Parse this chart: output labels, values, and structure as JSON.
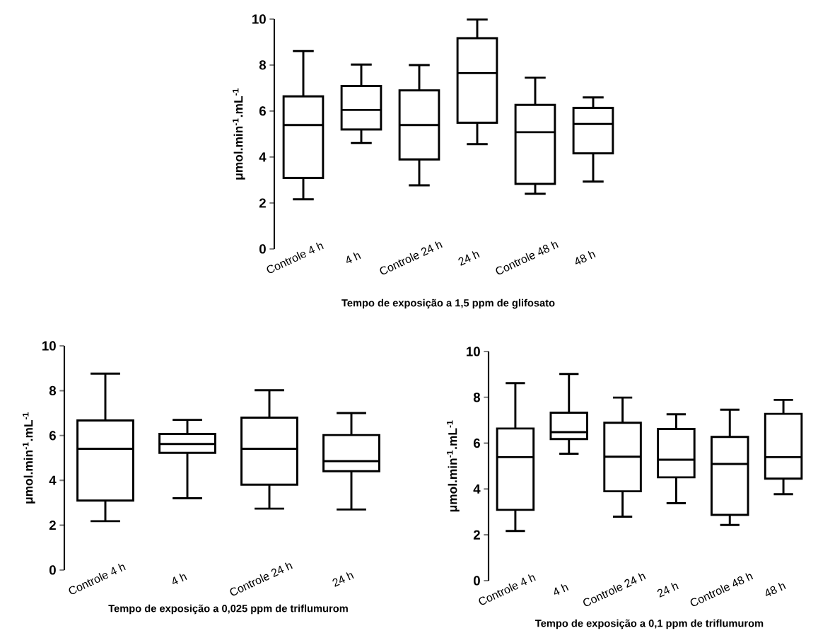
{
  "chart_data": [
    {
      "type": "box",
      "xlabel": "Tempo de exposição a 1,5 ppm de glifosato",
      "ylabel": "μmol.min$^{-1}$.mL$^{-1}$",
      "categories": [
        "Controle 4 h",
        "4 h",
        "Controle 24 h",
        "24 h",
        "Controle 48 h",
        "48 h"
      ],
      "ylim": [
        0,
        10
      ],
      "yticks": [
        0,
        2,
        4,
        6,
        8,
        10
      ],
      "boxes": [
        {
          "low": 2.16,
          "q1": 3.09,
          "median": 5.39,
          "q3": 6.64,
          "high": 8.61
        },
        {
          "low": 4.61,
          "q1": 5.2,
          "median": 6.05,
          "q3": 7.09,
          "high": 8.02
        },
        {
          "low": 2.77,
          "q1": 3.89,
          "median": 5.39,
          "q3": 6.9,
          "high": 8.0
        },
        {
          "low": 4.56,
          "q1": 5.49,
          "median": 7.65,
          "q3": 9.17,
          "high": 9.98
        },
        {
          "low": 2.4,
          "q1": 2.83,
          "median": 5.08,
          "q3": 6.27,
          "high": 7.45
        },
        {
          "low": 2.93,
          "q1": 4.16,
          "median": 5.44,
          "q3": 6.14,
          "high": 6.59
        }
      ]
    },
    {
      "type": "box",
      "xlabel": "Tempo de exposição a 0,025 ppm de triflumurom",
      "ylabel": "μmol.min$^{-1}$.mL$^{-1}$",
      "categories": [
        "Controle 4 h",
        "4 h",
        "Controle 24 h",
        "24 h"
      ],
      "ylim": [
        0,
        10
      ],
      "yticks": [
        0,
        2,
        4,
        6,
        8,
        10
      ],
      "boxes": [
        {
          "low": 2.18,
          "q1": 3.1,
          "median": 5.41,
          "q3": 6.67,
          "high": 8.76
        },
        {
          "low": 3.2,
          "q1": 5.23,
          "median": 5.62,
          "q3": 6.07,
          "high": 6.7
        },
        {
          "low": 2.74,
          "q1": 3.81,
          "median": 5.41,
          "q3": 6.8,
          "high": 8.02
        },
        {
          "low": 2.7,
          "q1": 4.41,
          "median": 4.86,
          "q3": 6.02,
          "high": 7.0
        }
      ]
    },
    {
      "type": "box",
      "xlabel": "Tempo de exposição a 0,1 ppm de triflumurom",
      "ylabel": "μmol.min$^{-1}$.mL$^{-1}$",
      "categories": [
        "Controle 4 h",
        "4 h",
        "Controle 24 h",
        "24 h",
        "Controle 48 h",
        "48 h"
      ],
      "ylim": [
        0,
        10
      ],
      "yticks": [
        0,
        2,
        4,
        6,
        8,
        10
      ],
      "boxes": [
        {
          "low": 2.17,
          "q1": 3.09,
          "median": 5.39,
          "q3": 6.64,
          "high": 8.62
        },
        {
          "low": 5.54,
          "q1": 6.18,
          "median": 6.48,
          "q3": 7.33,
          "high": 9.02
        },
        {
          "low": 2.79,
          "q1": 3.9,
          "median": 5.41,
          "q3": 6.89,
          "high": 7.99
        },
        {
          "low": 3.38,
          "q1": 4.51,
          "median": 5.28,
          "q3": 6.62,
          "high": 7.26
        },
        {
          "low": 2.43,
          "q1": 2.87,
          "median": 5.09,
          "q3": 6.27,
          "high": 7.46
        },
        {
          "low": 3.77,
          "q1": 4.45,
          "median": 5.39,
          "q3": 7.28,
          "high": 7.89
        }
      ]
    }
  ]
}
